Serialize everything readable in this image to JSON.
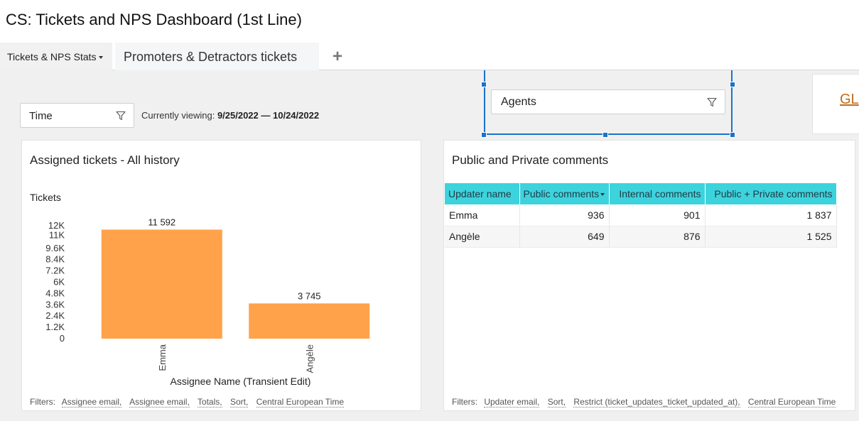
{
  "header": {
    "title": "CS: Tickets and NPS Dashboard (1st Line)"
  },
  "tabs": [
    {
      "label": "Tickets & NPS Stats"
    },
    {
      "label": "Promoters & Detractors tickets"
    }
  ],
  "add_tab": "+",
  "filters": {
    "time_label": "Time",
    "viewing_prefix": "Currently viewing: ",
    "viewing_range": "9/25/2022 — 10/24/2022",
    "agents_label": "Agents",
    "gl_link": "GL"
  },
  "assigned_card": {
    "title": "Assigned tickets - All history",
    "footer_label": "Filters:",
    "footer_items": [
      "Assignee email,",
      "Assignee email,",
      "Totals,",
      "Sort,",
      "Central European Time"
    ]
  },
  "chart_data": {
    "type": "bar",
    "title": "Assigned tickets - All history",
    "ylabel": "Tickets",
    "xlabel": "Assignee Name (Transient Edit)",
    "categories": [
      "Emma",
      "Angèle"
    ],
    "values": [
      11592,
      3745
    ],
    "value_labels": [
      "11 592",
      "3 745"
    ],
    "yticks": [
      0,
      1200,
      2400,
      3600,
      4800,
      6000,
      7200,
      8400,
      9600,
      11000,
      12000
    ],
    "ytick_labels": [
      "0",
      "1.2K",
      "2.4K",
      "3.6K",
      "4.8K",
      "6K",
      "7.2K",
      "8.4K",
      "9.6K",
      "11K",
      "12K"
    ],
    "ylim": [
      0,
      12000
    ],
    "grid": false,
    "colors": {
      "bar": "#ffa24a"
    }
  },
  "comments_card": {
    "title": "Public and Private comments",
    "columns": [
      "Updater name",
      "Public comments",
      "Internal comments",
      "Public + Private comments"
    ],
    "rows": [
      [
        "Emma",
        "936",
        "901",
        "1 837"
      ],
      [
        "Angèle",
        "649",
        "876",
        "1 525"
      ]
    ],
    "footer_label": "Filters:",
    "footer_items": [
      "Updater email,",
      "Sort,",
      "Restrict (ticket_updates_ticket_updated_at),",
      "Central European Time"
    ]
  },
  "colors": {
    "accent": "#1a73c9",
    "table_header": "#3dd3dd",
    "link": "#c06a1a"
  }
}
